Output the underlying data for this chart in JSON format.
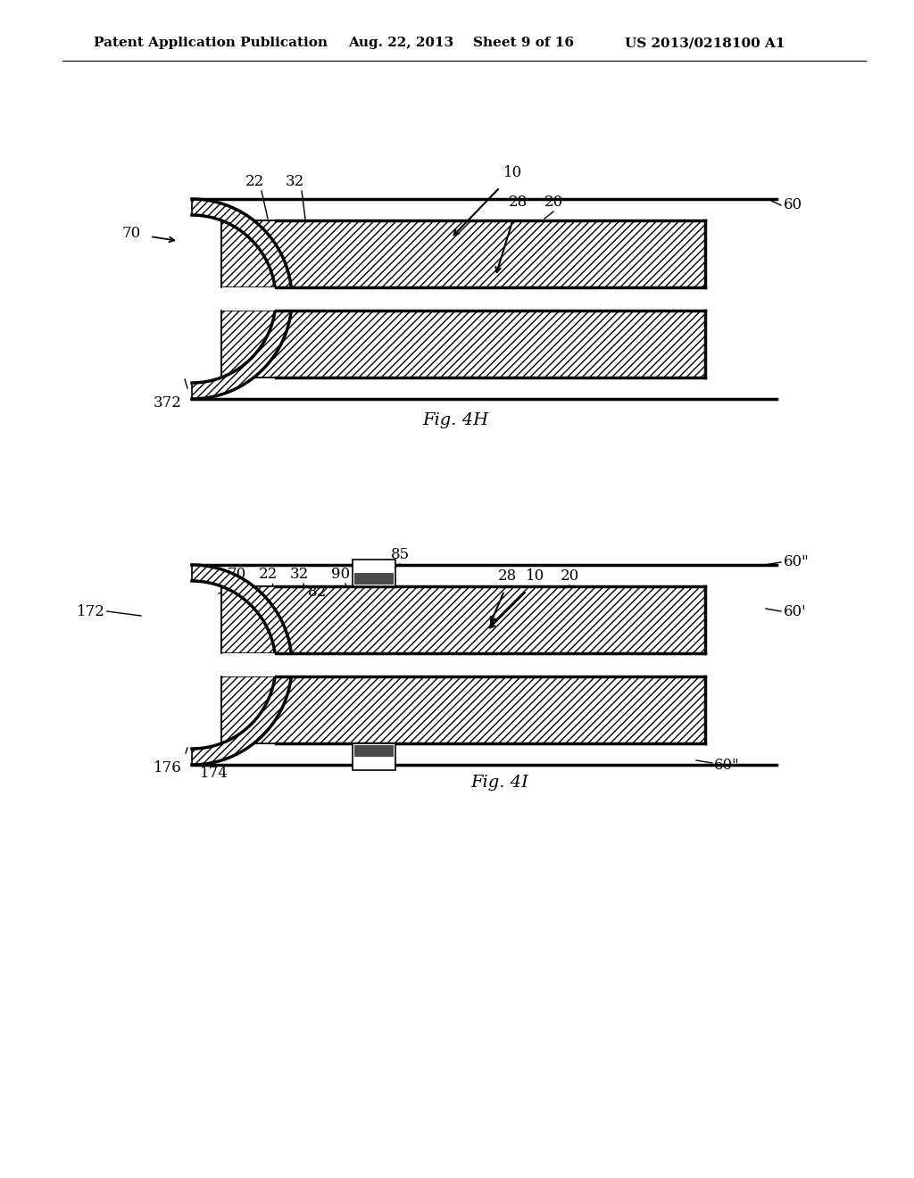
{
  "bg_color": "#ffffff",
  "header_text": "Patent Application Publication",
  "header_date": "Aug. 22, 2013",
  "header_sheet": "Sheet 9 of 16",
  "header_patent": "US 2013/0218100 A1",
  "fig4h_caption": "Fig. 4H",
  "fig4i_caption": "Fig. 4I",
  "hatch_pattern": "////",
  "line_color": "#000000"
}
